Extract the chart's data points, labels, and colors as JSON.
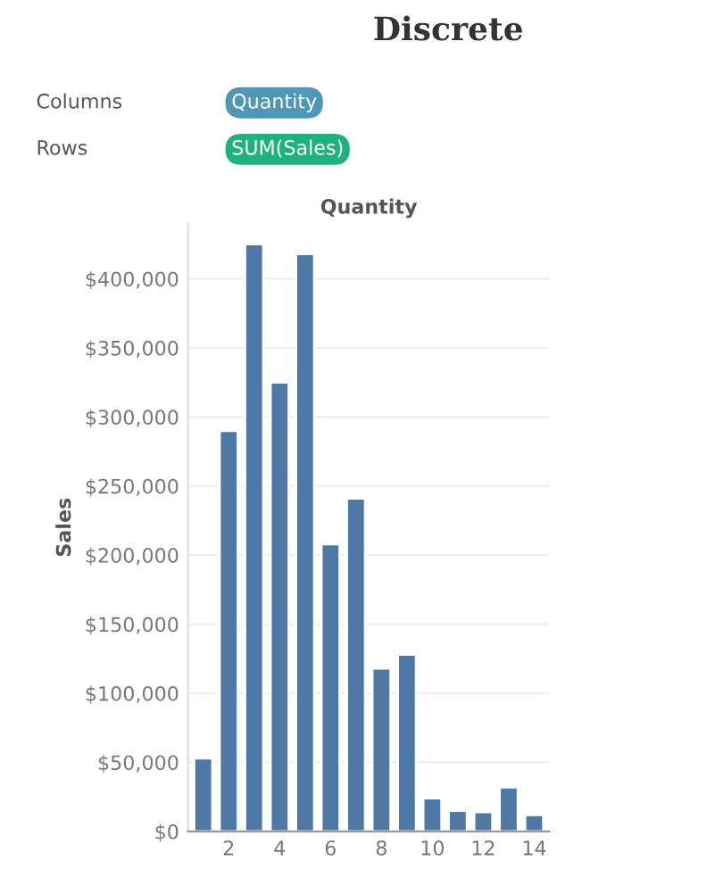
{
  "chart_data": {
    "type": "bar",
    "title": "Discrete",
    "xlabel": "Quantity",
    "ylabel": "Sales",
    "annotations": [
      "Columns",
      "Quantity",
      "Rows",
      "SUM(Sales)"
    ],
    "categories": [
      null,
      "2",
      null,
      "4",
      null,
      "6",
      null,
      "8",
      null,
      "10",
      null,
      "12",
      null,
      "14"
    ],
    "series": [
      {
        "color": "#4e79a7",
        "values": [
          53000,
          290000,
          425000,
          325000,
          418000,
          208000,
          241000,
          118000,
          128000,
          24000,
          15000,
          14000,
          32000,
          12000
        ]
      }
    ],
    "ylim": [
      0,
      440000
    ],
    "yticks": [
      {
        "value": 0,
        "label": "$0"
      },
      {
        "value": 50000,
        "label": "$50,000"
      },
      {
        "value": 100000,
        "label": "$100,000"
      },
      {
        "value": 150000,
        "label": "$150,000"
      },
      {
        "value": 200000,
        "label": "$200,000"
      },
      {
        "value": 250000,
        "label": "$250,000"
      },
      {
        "value": 300000,
        "label": "$300,000"
      },
      {
        "value": 350000,
        "label": "$350,000"
      },
      {
        "value": 400000,
        "label": "$400,000"
      }
    ],
    "grid": "y",
    "legend": false
  }
}
